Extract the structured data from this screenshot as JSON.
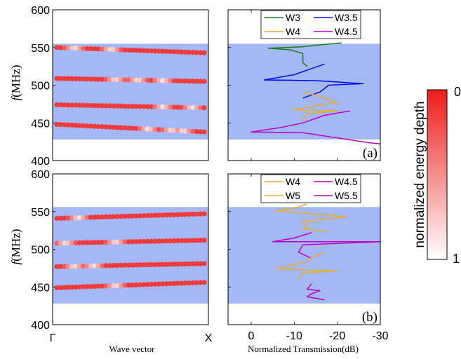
{
  "colors": {
    "band": "#a3b8f5",
    "dot": "#ee2a2a",
    "W3": "#1a7d1a",
    "W3.5": "#0010e6",
    "W4": "#e8ad2e",
    "W4.5": "#c000c0",
    "W5": "#e8ad2e",
    "W5.5": "#c000c0"
  },
  "shared": {
    "ylabel_italic": "f",
    "ylabel_unit": "(MHz)",
    "xlabel_left": "Wave vector",
    "xlabel_right": "Normalized Transmission(dB)",
    "xticks_left": [
      "Γ",
      "X"
    ],
    "colorbar_label": "normalized energy depth",
    "colorbar_top": "0",
    "colorbar_bottom": "1"
  },
  "chart_data": [
    {
      "type": "scatter",
      "panel": "top-left",
      "ylim": [
        400,
        600
      ],
      "yticks": [
        400,
        450,
        500,
        550,
        600
      ],
      "band": [
        428,
        555
      ],
      "series": [
        {
          "values": [
            550,
            543
          ],
          "light": [
            0.12,
            0.37
          ]
        },
        {
          "values": [
            509,
            505
          ],
          "light": [
            0.4,
            0.55,
            0.72
          ]
        },
        {
          "values": [
            474,
            470
          ],
          "light": [
            0.72,
            0.92
          ]
        },
        {
          "values": [
            448,
            438
          ],
          "light": [
            0.62,
            0.78,
            0.86
          ]
        }
      ]
    },
    {
      "type": "line",
      "panel": "top-right",
      "label": "(a)",
      "ylim": [
        400,
        600
      ],
      "xlim": [
        0,
        -30
      ],
      "xticks": [
        0,
        -10,
        -20,
        -30
      ],
      "band": [
        428,
        555
      ],
      "series": [
        {
          "name": "W3",
          "points": [
            [
              -21,
              556
            ],
            [
              -15,
              553
            ],
            [
              -12,
              551
            ],
            [
              -4,
              549
            ],
            [
              -9,
              547
            ],
            [
              -12,
              542
            ],
            [
              -12,
              530
            ],
            [
              -13,
              525
            ]
          ]
        },
        {
          "name": "W3.5",
          "points": [
            [
              -17,
              528
            ],
            [
              -10,
              514
            ],
            [
              -3,
              507
            ],
            [
              -15,
              506
            ],
            [
              -26,
              502
            ],
            [
              -18,
              500
            ],
            [
              -16,
              491
            ],
            [
              -12,
              483
            ]
          ]
        },
        {
          "name": "W4",
          "points": [
            [
              -12,
              490
            ],
            [
              -15,
              487
            ],
            [
              -20,
              477
            ],
            [
              -14,
              472
            ],
            [
              -10,
              467
            ],
            [
              -20,
              466
            ],
            [
              -13,
              462
            ],
            [
              -12,
              454
            ]
          ]
        },
        {
          "name": "W4.5",
          "points": [
            [
              -23,
              466
            ],
            [
              -17,
              460
            ],
            [
              -12,
              450
            ],
            [
              -7,
              444
            ],
            [
              0,
              438
            ],
            [
              -12,
              437
            ],
            [
              -27,
              424
            ],
            [
              -30,
              422
            ]
          ]
        }
      ]
    },
    {
      "type": "scatter",
      "panel": "bottom-left",
      "ylim": [
        400,
        600
      ],
      "yticks": [
        400,
        450,
        500,
        550,
        600
      ],
      "band": [
        428,
        556
      ],
      "series": [
        {
          "values": [
            541,
            547
          ],
          "light": [
            0.15
          ]
        },
        {
          "values": [
            508,
            512
          ],
          "light": [
            0.06,
            0.4
          ]
        },
        {
          "values": [
            477,
            481
          ],
          "light": [
            0.12,
            0.25
          ]
        },
        {
          "values": [
            449,
            456
          ],
          "light": [
            0.4
          ]
        }
      ]
    },
    {
      "type": "line",
      "panel": "bottom-right",
      "label": "(b)",
      "ylim": [
        400,
        600
      ],
      "xlim": [
        0,
        -30
      ],
      "xticks": [
        0,
        -10,
        -20,
        -30
      ],
      "band": [
        428,
        556
      ],
      "series": [
        {
          "name": "W4",
          "points": [
            [
              -13,
              560
            ],
            [
              -11,
              556
            ],
            [
              -6,
              551
            ],
            [
              -22,
              543
            ],
            [
              -12,
              537
            ],
            [
              -13,
              530
            ],
            [
              -12,
              527
            ],
            [
              -18,
              524
            ]
          ]
        },
        {
          "name": "W4.5",
          "points": [
            [
              -14,
              522
            ],
            [
              -10,
              515
            ],
            [
              -5,
              510
            ],
            [
              -30,
              510
            ],
            [
              -12,
              506
            ],
            [
              -11,
              496
            ],
            [
              -14,
              488
            ]
          ]
        },
        {
          "name": "W5",
          "points": [
            [
              -17,
              496
            ],
            [
              -14,
              489
            ],
            [
              -13,
              484
            ],
            [
              -6,
              474
            ],
            [
              -20,
              471
            ],
            [
              -12,
              469
            ],
            [
              -11,
              459
            ]
          ]
        },
        {
          "name": "W5.5",
          "points": [
            [
              -14,
              454
            ],
            [
              -13,
              447
            ],
            [
              -16,
              445
            ],
            [
              -14,
              441
            ],
            [
              -13,
              437
            ],
            [
              -17,
              433
            ]
          ]
        }
      ]
    }
  ]
}
